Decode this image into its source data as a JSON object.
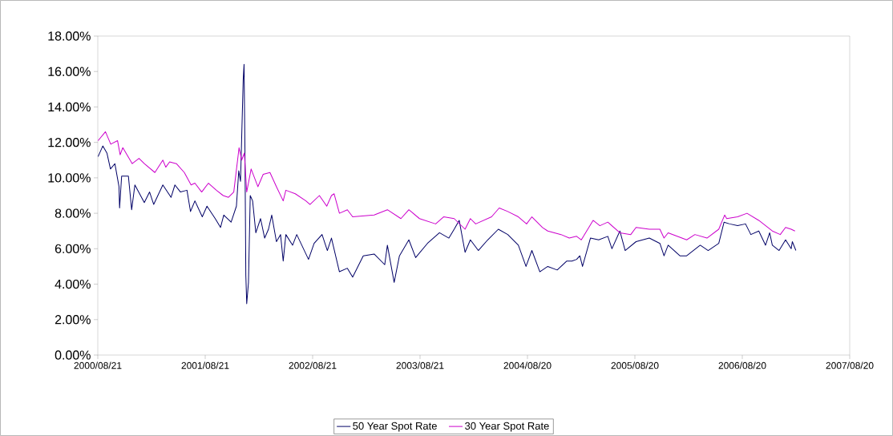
{
  "chart_data": {
    "type": "line",
    "xlim": [
      "2000-08-21",
      "2007-08-20"
    ],
    "xticks": [
      {
        "value": "2000-08-21",
        "label": "2000/08/21"
      },
      {
        "value": "2001-08-21",
        "label": "2001/08/21"
      },
      {
        "value": "2002-08-21",
        "label": "2002/08/21"
      },
      {
        "value": "2003-08-21",
        "label": "2003/08/21"
      },
      {
        "value": "2004-08-20",
        "label": "2004/08/20"
      },
      {
        "value": "2005-08-20",
        "label": "2005/08/20"
      },
      {
        "value": "2006-08-20",
        "label": "2006/08/20"
      },
      {
        "value": "2007-08-20",
        "label": "2007/08/20"
      }
    ],
    "ylim": [
      0,
      18
    ],
    "yticks": [
      {
        "value": 0,
        "label": "0.00%"
      },
      {
        "value": 2,
        "label": "2.00%"
      },
      {
        "value": 4,
        "label": "4.00%"
      },
      {
        "value": 6,
        "label": "6.00%"
      },
      {
        "value": 8,
        "label": "8.00%"
      },
      {
        "value": 10,
        "label": "10.00%"
      },
      {
        "value": 12,
        "label": "12.00%"
      },
      {
        "value": 14,
        "label": "14.00%"
      },
      {
        "value": 16,
        "label": "16.00%"
      },
      {
        "value": 18,
        "label": "18.00%"
      }
    ],
    "grid": false,
    "legend": "bottom",
    "marker": "none",
    "line_style": "solid",
    "series": [
      {
        "name": "50 Year Spot Rate",
        "color": "#000066",
        "x": [
          "2000-08-22",
          "2000-09-07",
          "2000-09-21",
          "2000-10-03",
          "2000-10-18",
          "2000-11-01",
          "2000-11-03",
          "2000-11-10",
          "2000-12-03",
          "2000-12-14",
          "2000-12-25",
          "2001-01-26",
          "2001-02-13",
          "2001-02-27",
          "2001-03-30",
          "2001-04-27",
          "2001-05-10",
          "2001-05-29",
          "2001-06-20",
          "2001-07-02",
          "2001-07-17",
          "2001-08-11",
          "2001-08-27",
          "2001-09-24",
          "2001-10-12",
          "2001-10-23",
          "2001-11-17",
          "2001-12-05",
          "2001-12-13",
          "2001-12-19",
          "2001-12-28",
          "2001-12-31",
          "2002-01-03",
          "2002-01-06",
          "2002-01-09",
          "2002-01-15",
          "2002-01-21",
          "2002-01-29",
          "2002-02-09",
          "2002-02-25",
          "2002-03-11",
          "2002-03-24",
          "2002-04-04",
          "2002-04-20",
          "2002-05-04",
          "2002-05-13",
          "2002-05-22",
          "2002-06-14",
          "2002-06-28",
          "2002-08-07",
          "2002-08-26",
          "2002-09-22",
          "2002-10-10",
          "2002-10-24",
          "2002-11-20",
          "2002-12-17",
          "2003-01-04",
          "2003-02-09",
          "2003-03-18",
          "2003-04-23",
          "2003-05-02",
          "2003-05-25",
          "2003-06-12",
          "2003-07-14",
          "2003-08-06",
          "2003-09-15",
          "2003-10-26",
          "2003-11-27",
          "2003-12-15",
          "2004-01-01",
          "2004-01-21",
          "2004-02-08",
          "2004-03-06",
          "2004-04-07",
          "2004-05-13",
          "2004-06-14",
          "2004-07-20",
          "2004-08-15",
          "2004-09-04",
          "2004-10-01",
          "2004-10-28",
          "2004-11-29",
          "2004-12-31",
          "2005-01-18",
          "2005-02-03",
          "2005-02-14",
          "2005-02-23",
          "2005-03-22",
          "2005-04-19",
          "2005-05-20",
          "2005-06-03",
          "2005-06-30",
          "2005-07-18",
          "2005-08-24",
          "2005-10-08",
          "2005-11-13",
          "2005-11-27",
          "2005-12-11",
          "2006-01-20",
          "2006-02-12",
          "2006-03-30",
          "2006-04-26",
          "2006-06-01",
          "2006-06-19",
          "2006-07-08",
          "2006-08-04",
          "2006-08-31",
          "2006-09-18",
          "2006-10-15",
          "2006-11-07",
          "2006-11-21",
          "2006-11-30",
          "2006-12-23",
          "2007-01-14",
          "2007-02-02",
          "2007-02-06",
          "2007-02-18"
        ],
        "values": [
          11.2,
          11.8,
          11.4,
          10.5,
          10.8,
          9.5,
          8.3,
          10.1,
          10.1,
          8.2,
          9.6,
          8.6,
          9.2,
          8.5,
          9.6,
          8.9,
          9.6,
          9.2,
          9.3,
          8.1,
          8.7,
          7.8,
          8.4,
          7.7,
          7.2,
          7.9,
          7.5,
          8.4,
          10.4,
          9.8,
          15.5,
          16.4,
          11.6,
          4.5,
          2.9,
          4.1,
          9.0,
          8.7,
          6.9,
          7.7,
          6.6,
          7.1,
          7.9,
          6.4,
          6.8,
          5.3,
          6.8,
          6.2,
          6.8,
          5.4,
          6.3,
          6.8,
          5.9,
          6.6,
          4.7,
          4.9,
          4.4,
          5.6,
          5.7,
          5.1,
          6.2,
          4.1,
          5.6,
          6.5,
          5.5,
          6.3,
          6.9,
          6.6,
          7.1,
          7.6,
          5.8,
          6.5,
          5.9,
          6.5,
          7.1,
          6.8,
          6.2,
          5.0,
          5.9,
          4.7,
          5.0,
          4.8,
          5.3,
          5.3,
          5.4,
          5.6,
          5.0,
          6.6,
          6.5,
          6.7,
          6.0,
          7.0,
          5.9,
          6.4,
          6.6,
          6.3,
          5.6,
          6.2,
          5.6,
          5.6,
          6.2,
          5.9,
          6.3,
          7.5,
          7.4,
          7.3,
          7.4,
          6.8,
          7.0,
          6.2,
          6.9,
          6.2,
          5.9,
          6.5,
          6.0,
          6.4,
          5.9
        ]
      },
      {
        "name": "30 Year Spot Rate",
        "color": "#cc00cc",
        "x": [
          "2000-08-22",
          "2000-09-16",
          "2000-10-04",
          "2000-10-27",
          "2000-11-05",
          "2000-11-14",
          "2000-12-16",
          "2001-01-08",
          "2001-01-26",
          "2001-03-03",
          "2001-03-30",
          "2001-04-09",
          "2001-04-22",
          "2001-05-15",
          "2001-06-11",
          "2001-07-04",
          "2001-07-17",
          "2001-08-09",
          "2001-09-01",
          "2001-09-28",
          "2001-10-21",
          "2001-11-08",
          "2001-11-26",
          "2001-12-14",
          "2001-12-23",
          "2002-01-01",
          "2002-01-09",
          "2002-01-24",
          "2002-02-16",
          "2002-03-06",
          "2002-03-29",
          "2002-04-20",
          "2002-05-13",
          "2002-05-22",
          "2002-06-23",
          "2002-07-29",
          "2002-08-12",
          "2002-09-13",
          "2002-10-08",
          "2002-10-24",
          "2002-11-02",
          "2002-11-20",
          "2002-12-17",
          "2003-01-04",
          "2003-03-18",
          "2003-05-02",
          "2003-06-17",
          "2003-07-14",
          "2003-08-19",
          "2003-10-13",
          "2003-11-09",
          "2003-12-15",
          "2004-01-21",
          "2004-02-08",
          "2004-02-26",
          "2004-04-20",
          "2004-05-16",
          "2004-06-14",
          "2004-07-20",
          "2004-08-17",
          "2004-09-04",
          "2004-10-10",
          "2004-10-28",
          "2004-12-12",
          "2005-01-09",
          "2005-02-03",
          "2005-02-19",
          "2005-03-31",
          "2005-04-23",
          "2005-05-20",
          "2005-06-30",
          "2005-08-06",
          "2005-08-24",
          "2005-10-08",
          "2005-11-13",
          "2005-11-27",
          "2005-12-11",
          "2006-02-12",
          "2006-03-12",
          "2006-04-22",
          "2006-06-01",
          "2006-06-21",
          "2006-06-28",
          "2006-08-04",
          "2006-09-05",
          "2006-10-15",
          "2006-11-30",
          "2006-12-27",
          "2007-01-14",
          "2007-02-02",
          "2007-02-15"
        ],
        "values": [
          12.1,
          12.6,
          11.9,
          12.1,
          11.3,
          11.7,
          10.8,
          11.1,
          10.8,
          10.3,
          11.0,
          10.6,
          10.9,
          10.8,
          10.3,
          9.6,
          9.7,
          9.2,
          9.7,
          9.3,
          9.0,
          8.9,
          9.2,
          11.7,
          11.0,
          11.4,
          9.2,
          10.5,
          9.5,
          10.2,
          10.3,
          9.5,
          8.7,
          9.3,
          9.1,
          8.7,
          8.5,
          9.0,
          8.4,
          9.0,
          9.1,
          8.0,
          8.2,
          7.8,
          7.9,
          8.2,
          7.7,
          8.2,
          7.7,
          7.4,
          7.8,
          7.7,
          7.1,
          7.7,
          7.4,
          7.8,
          8.3,
          8.1,
          7.8,
          7.4,
          7.8,
          7.2,
          7.0,
          6.8,
          6.6,
          6.7,
          6.5,
          7.6,
          7.3,
          7.5,
          6.9,
          6.8,
          7.2,
          7.1,
          7.1,
          6.6,
          6.9,
          6.5,
          6.8,
          6.6,
          7.1,
          7.9,
          7.7,
          7.8,
          8.0,
          7.6,
          7.0,
          6.8,
          7.2,
          7.1,
          7.0
        ]
      }
    ]
  }
}
